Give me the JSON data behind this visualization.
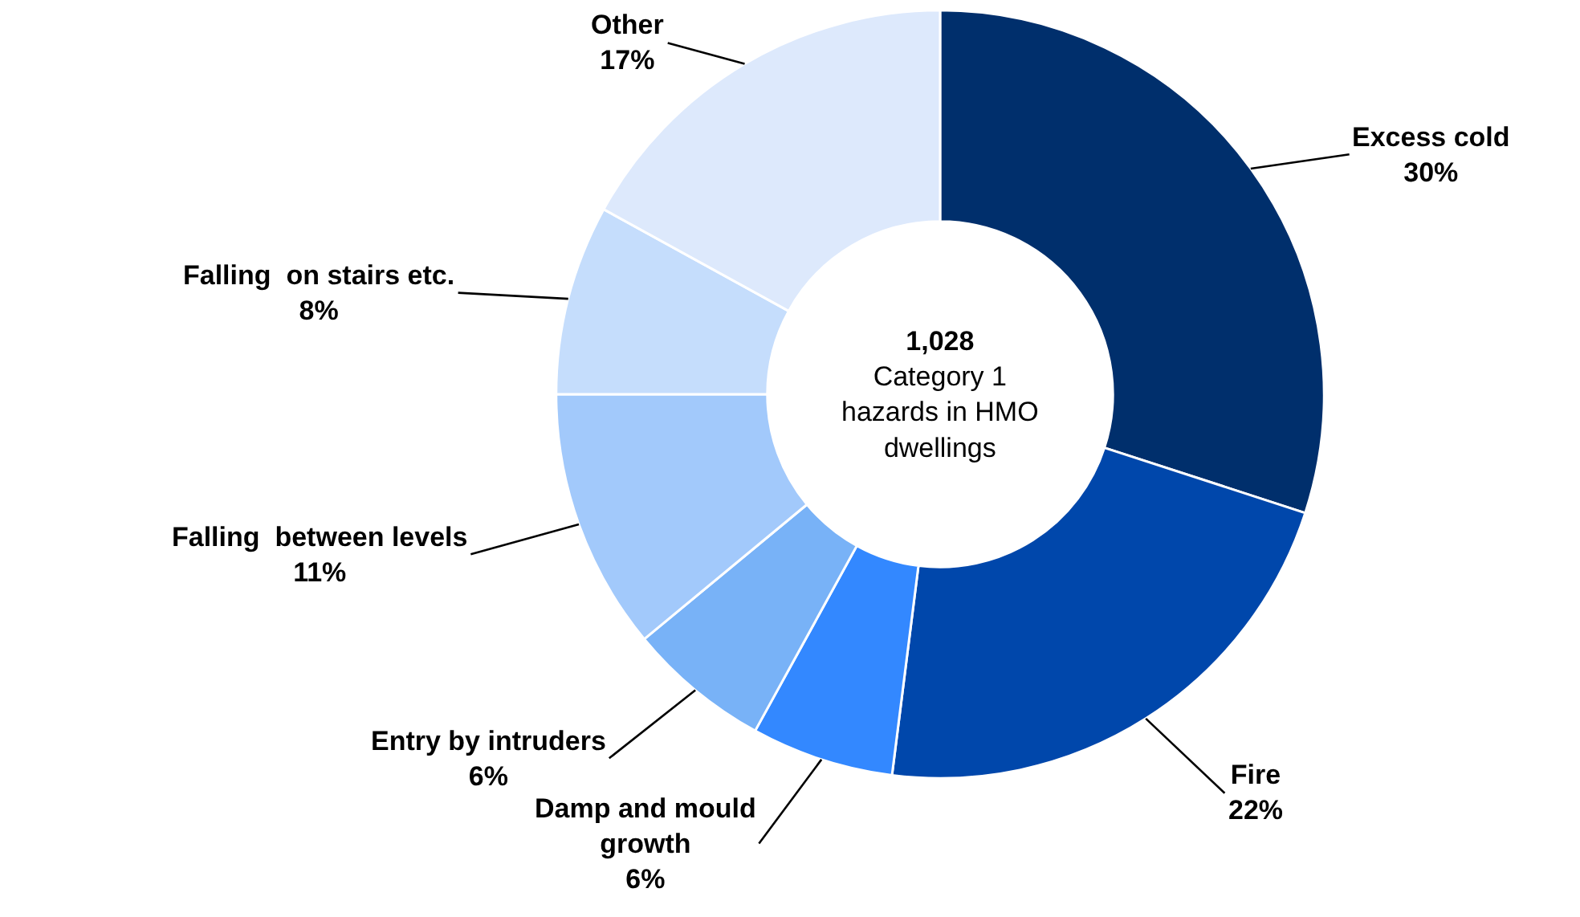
{
  "chart_data": {
    "type": "donut",
    "title": "1,028",
    "subtitle": "Category 1 hazards in HMO dwellings",
    "categories": [
      "Excess cold",
      "Fire",
      "Damp and mould growth",
      "Entry by intruders",
      "Falling  between levels",
      "Falling  on stairs etc.",
      "Other"
    ],
    "values": [
      30,
      22,
      6,
      6,
      11,
      8,
      17
    ],
    "value_labels": [
      "30%",
      "22%",
      "6%",
      "6%",
      "11%",
      "8%",
      "17%"
    ],
    "colors": [
      "#002f6c",
      "#0047ab",
      "#3388ff",
      "#78b2f7",
      "#a2c9fb",
      "#c5ddfc",
      "#dde9fc"
    ],
    "legend": false
  }
}
